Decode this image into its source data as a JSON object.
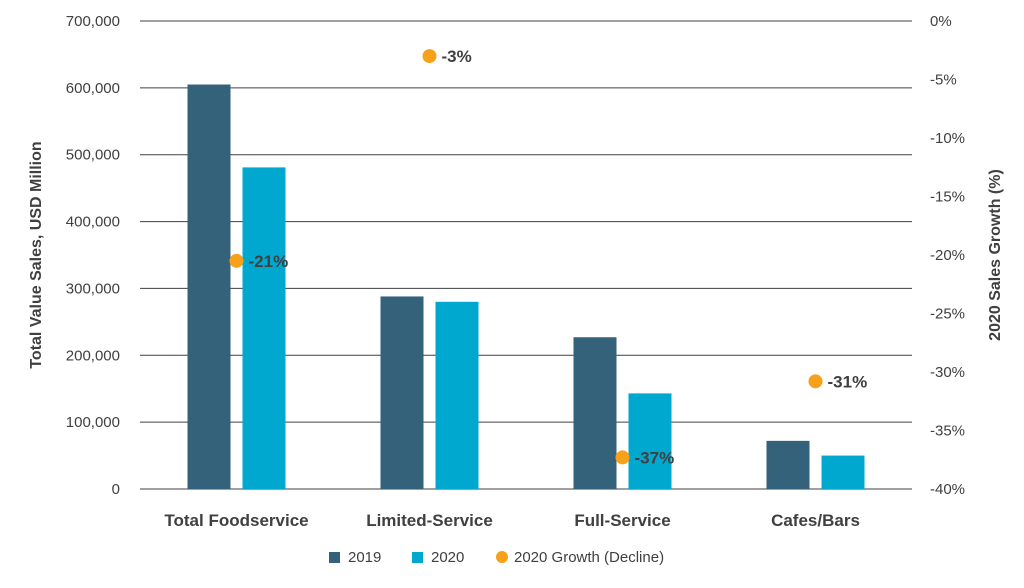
{
  "chart_data": {
    "type": "bar",
    "categories": [
      "Total Foodservice",
      "Limited-Service",
      "Full-Service",
      "Cafes/Bars"
    ],
    "series": [
      {
        "name": "2019",
        "axis": "left",
        "values": [
          605000,
          288000,
          227000,
          72000
        ]
      },
      {
        "name": "2020",
        "axis": "left",
        "values": [
          481000,
          280000,
          143000,
          50000
        ]
      }
    ],
    "secondary_series": {
      "name": "2020 Growth (Decline)",
      "type": "scatter",
      "axis": "right",
      "values": [
        -20.5,
        -3.0,
        -37.3,
        -30.8
      ],
      "labels": [
        "-21%",
        "-3%",
        "-37%",
        "-31%"
      ]
    },
    "ylabel": "Total Value Sales, USD Million",
    "y2label": "2020 Sales Growth (%)",
    "ylim": [
      0,
      700000
    ],
    "y2lim": [
      -40,
      0
    ],
    "yticks": [
      "0",
      "100,000",
      "200,000",
      "300,000",
      "400,000",
      "500,000",
      "600,000",
      "700,000"
    ],
    "y2ticks": [
      "-40%",
      "-35%",
      "-30%",
      "-25%",
      "-20%",
      "-15%",
      "-10%",
      "-5%",
      "0%"
    ],
    "grid": true,
    "legend_position": "bottom",
    "colors": {
      "2019": "#33627a",
      "2020": "#00a8d0",
      "growth": "#f7a11a",
      "grid": "#404040",
      "text": "#404040"
    }
  }
}
